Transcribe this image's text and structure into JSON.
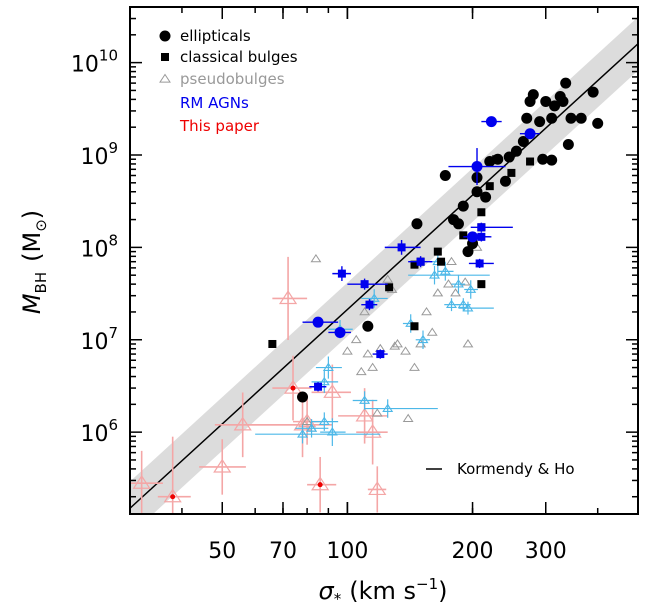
{
  "chart_data": {
    "type": "scatter",
    "x_scale": "log",
    "y_scale": "log",
    "xlim": [
      30,
      500
    ],
    "ylim": [
      130000,
      40000000000
    ],
    "x_ticks": [
      {
        "value": 50,
        "label": "50"
      },
      {
        "value": 70,
        "label": "70"
      },
      {
        "value": 100,
        "label": "100"
      },
      {
        "value": 200,
        "label": "200"
      },
      {
        "value": 300,
        "label": "300"
      }
    ],
    "y_ticks": [
      {
        "value": 1000000,
        "mant": "10",
        "exp": "6"
      },
      {
        "value": 10000000,
        "mant": "10",
        "exp": "7"
      },
      {
        "value": 100000000,
        "mant": "10",
        "exp": "8"
      },
      {
        "value": 1000000000,
        "mant": "10",
        "exp": "9"
      },
      {
        "value": 10000000000,
        "mant": "10",
        "exp": "10"
      }
    ],
    "xlabel": {
      "symbol": "σ",
      "sub": "*",
      "unit_open": "(km s",
      "unit_exp": "−1",
      "unit_close": ")"
    },
    "ylabel": {
      "symbol": "M",
      "sub": "BH",
      "unit": "(M",
      "unit_sub": "⊙",
      "unit_close": ")"
    },
    "grid": false,
    "legend_position": "top-left",
    "legend": [
      {
        "label": "ellipticals",
        "marker": "circle",
        "color": "#000000"
      },
      {
        "label": "classical bulges",
        "marker": "square",
        "color": "#000000"
      },
      {
        "label": "pseudobulges",
        "marker": "triangle-open",
        "color": "#999999"
      },
      {
        "label": "RM AGNs",
        "marker": "none",
        "color": "#0000ee"
      },
      {
        "label": "This paper",
        "marker": "none",
        "color": "#ee0000"
      }
    ],
    "fit_legend": {
      "label": "Kormendy & Ho"
    },
    "fit": {
      "name": "Kormendy & Ho",
      "x": [
        30,
        500
      ],
      "y": [
        150000,
        16000000000
      ],
      "band_dex": 0.29
    },
    "series": [
      {
        "name": "ellipticals",
        "marker": "circle",
        "color": "#000000",
        "points": [
          [
            147,
            180000000
          ],
          [
            172,
            600000000
          ],
          [
            180,
            200000000
          ],
          [
            185,
            180000000
          ],
          [
            190,
            280000000
          ],
          [
            195,
            90000000
          ],
          [
            200,
            110000000
          ],
          [
            205,
            400000000
          ],
          [
            205,
            570000000
          ],
          [
            215,
            350000000
          ],
          [
            220,
            850000000
          ],
          [
            230,
            900000000
          ],
          [
            240,
            520000000
          ],
          [
            245,
            950000000
          ],
          [
            255,
            1100000000
          ],
          [
            265,
            1400000000
          ],
          [
            270,
            2500000000
          ],
          [
            275,
            3800000000
          ],
          [
            280,
            4500000000
          ],
          [
            290,
            2300000000
          ],
          [
            295,
            900000000
          ],
          [
            300,
            3800000000
          ],
          [
            310,
            2500000000
          ],
          [
            315,
            3400000000
          ],
          [
            325,
            4300000000
          ],
          [
            330,
            3800000000
          ],
          [
            335,
            6000000000
          ],
          [
            340,
            1300000000
          ],
          [
            345,
            2500000000
          ],
          [
            365,
            2500000000
          ],
          [
            390,
            4800000000
          ],
          [
            400,
            2200000000
          ],
          [
            310,
            880000000
          ],
          [
            78,
            2400000
          ],
          [
            112,
            14000000
          ]
        ]
      },
      {
        "name": "classical bulges",
        "marker": "square",
        "color": "#000000",
        "points": [
          [
            66,
            9000000
          ],
          [
            126,
            37000000
          ],
          [
            145,
            14000000
          ],
          [
            145,
            65000000
          ],
          [
            150,
            70000000
          ],
          [
            165,
            90000000
          ],
          [
            168,
            70000000
          ],
          [
            210,
            40000000
          ],
          [
            210,
            165000000
          ],
          [
            210,
            240000000
          ],
          [
            220,
            460000000
          ],
          [
            228,
            900000000
          ],
          [
            248,
            640000000
          ],
          [
            275,
            850000000
          ],
          [
            190,
            135000000
          ]
        ]
      },
      {
        "name": "pseudobulges",
        "marker": "triangle-open",
        "color": "#999999",
        "points": [
          [
            84,
            75000000
          ],
          [
            80,
            1300000
          ],
          [
            82,
            1100000
          ],
          [
            100,
            7500000
          ],
          [
            105,
            10000000
          ],
          [
            108,
            4500000
          ],
          [
            110,
            20000000
          ],
          [
            112,
            7000000
          ],
          [
            115,
            5000000
          ],
          [
            118,
            1600000
          ],
          [
            120,
            8000000
          ],
          [
            125,
            45000000
          ],
          [
            128,
            35000000
          ],
          [
            130,
            8500000
          ],
          [
            132,
            9000000
          ],
          [
            138,
            7500000
          ],
          [
            140,
            1400000
          ],
          [
            145,
            5000000
          ],
          [
            150,
            9000000
          ],
          [
            155,
            20000000
          ],
          [
            160,
            12000000
          ],
          [
            165,
            32000000
          ],
          [
            175,
            40000000
          ],
          [
            178,
            70000000
          ],
          [
            182,
            32000000
          ],
          [
            192,
            42000000
          ],
          [
            195,
            9000000
          ],
          [
            205,
            100000000
          ]
        ]
      },
      {
        "name": "pseudobulges (light blue)",
        "marker": "triangle-open",
        "color": "#4db8e8",
        "errors": true,
        "points": [
          [
            78,
            950000,
            60,
            120,
            0.1,
            0.1
          ],
          [
            82,
            1100000,
            75,
            90,
            0.1,
            0.1
          ],
          [
            88,
            1300000,
            82,
            95,
            0.1,
            0.1
          ],
          [
            88,
            3500000,
            82,
            95,
            0.12,
            0.12
          ],
          [
            90,
            5000000,
            84,
            97,
            0.12,
            0.12
          ],
          [
            92,
            1000000,
            86,
            99,
            0.15,
            0.15
          ],
          [
            96,
            13000000,
            90,
            103,
            0.1,
            0.1
          ],
          [
            110,
            2200000,
            103,
            118,
            0.1,
            0.1
          ],
          [
            116,
            28000000,
            108,
            125,
            0.1,
            0.1
          ],
          [
            125,
            1800000,
            110,
            165,
            0.1,
            0.1
          ],
          [
            142,
            15000000,
            136,
            148,
            0.1,
            0.1
          ],
          [
            152,
            10000000,
            146,
            158,
            0.1,
            0.1
          ],
          [
            162,
            50000000,
            140,
            220,
            0.1,
            0.1
          ],
          [
            165,
            70000000,
            158,
            172,
            0.15,
            0.15
          ],
          [
            178,
            24000000,
            171,
            186,
            0.07,
            0.07
          ],
          [
            190,
            24000000,
            183,
            198,
            0.07,
            0.07
          ],
          [
            195,
            22000000,
            185,
            225,
            0.07,
            0.07
          ],
          [
            198,
            35000000,
            191,
            206,
            0.1,
            0.1
          ],
          [
            185,
            40000000,
            178,
            192,
            0.1,
            0.1
          ],
          [
            172,
            55000000,
            165,
            180,
            0.1,
            0.1
          ]
        ]
      },
      {
        "name": "RM AGNs",
        "marker": "mixed",
        "color": "#0000ee",
        "errors": true,
        "points": [
          [
            85,
            15500000,
            78,
            95,
            0.04,
            0.04,
            "circle"
          ],
          [
            96,
            12000000,
            90,
            102,
            0.05,
            0.05,
            "circle"
          ],
          [
            97,
            52000000,
            92,
            102,
            0.08,
            0.08,
            "square"
          ],
          [
            110,
            40000000,
            100,
            125,
            0.06,
            0.06,
            "square"
          ],
          [
            113,
            24000000,
            108,
            118,
            0.06,
            0.06,
            "square"
          ],
          [
            120,
            7000000,
            115,
            125,
            0.05,
            0.05,
            "square"
          ],
          [
            135,
            100000000,
            123,
            150,
            0.08,
            0.08,
            "square"
          ],
          [
            150,
            70000000,
            140,
            160,
            0.06,
            0.06,
            "square"
          ],
          [
            200,
            130000000,
            190,
            220,
            0.05,
            0.05,
            "circle"
          ],
          [
            205,
            750000000,
            175,
            240,
            0.2,
            0.2,
            "circle"
          ],
          [
            208,
            67000000,
            196,
            225,
            0.05,
            0.05,
            "square"
          ],
          [
            210,
            165000000,
            198,
            250,
            0.05,
            0.05,
            "square"
          ],
          [
            210,
            130000000,
            200,
            222,
            0.05,
            0.05,
            "square"
          ],
          [
            222,
            2300000000,
            210,
            235,
            0.04,
            0.04,
            "circle"
          ],
          [
            275,
            1700000000,
            260,
            290,
            0.04,
            0.04,
            "circle"
          ],
          [
            85,
            3100000,
            81,
            89,
            0.05,
            0.05,
            "square"
          ]
        ]
      },
      {
        "name": "This paper",
        "marker": "triangle-open",
        "color": "#f4a6a6",
        "dot_color": "#ee0000",
        "errors": true,
        "points": [
          [
            32,
            280000,
            30,
            36,
            0.35,
            0.35,
            false
          ],
          [
            38,
            200000,
            35,
            42,
            0.65,
            0.65,
            true
          ],
          [
            50,
            420000,
            44,
            57,
            0.3,
            0.3,
            false
          ],
          [
            56,
            1200000,
            48,
            78,
            0.35,
            0.35,
            false
          ],
          [
            72,
            28000000,
            66,
            80,
            0.45,
            0.45,
            false
          ],
          [
            74,
            3000000,
            66,
            82,
            0.35,
            0.35,
            true
          ],
          [
            78,
            1200000,
            50,
            92,
            0.35,
            0.35,
            false
          ],
          [
            80,
            1300000,
            74,
            86,
            0.25,
            0.25,
            false
          ],
          [
            86,
            270000,
            80,
            94,
            0.3,
            0.3,
            true
          ],
          [
            92,
            2700000,
            82,
            102,
            0.3,
            0.3,
            false
          ],
          [
            110,
            1500000,
            95,
            125,
            0.3,
            0.3,
            false
          ],
          [
            115,
            1000000,
            105,
            125,
            0.35,
            0.35,
            false
          ],
          [
            118,
            240000,
            112,
            124,
            0.25,
            0.25,
            false
          ]
        ]
      }
    ]
  }
}
